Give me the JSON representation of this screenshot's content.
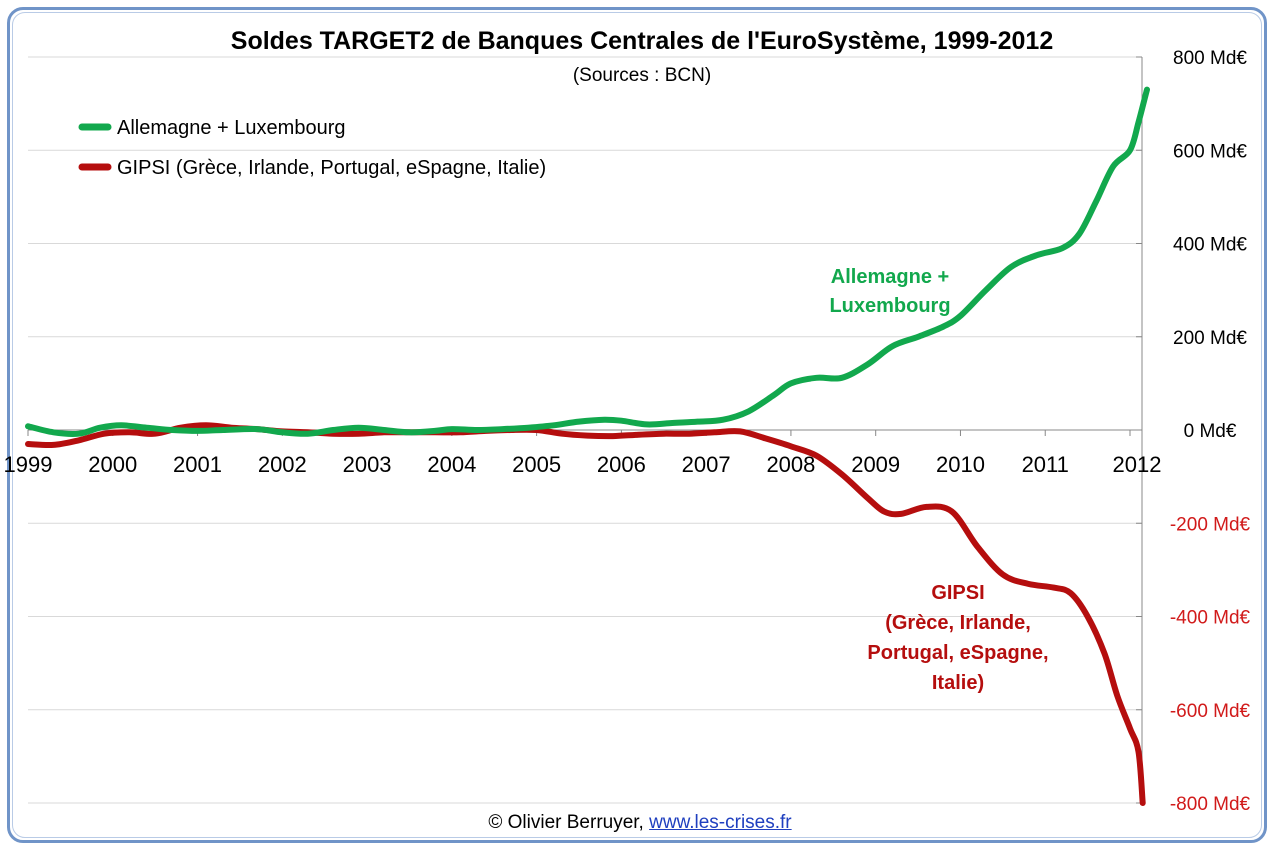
{
  "chart_data": {
    "type": "line",
    "title": "Soldes TARGET2 de Banques Centrales de l'EuroSystème, 1999-2012",
    "subtitle": "(Sources : BCN)",
    "xlabel": "",
    "ylabel": "",
    "x_ticks": [
      "1999",
      "2000",
      "2001",
      "2002",
      "2003",
      "2004",
      "2005",
      "2006",
      "2007",
      "2008",
      "2009",
      "2010",
      "2011",
      "2012"
    ],
    "xlim": [
      1999,
      2012.2
    ],
    "ylim": [
      -800,
      800
    ],
    "y_ticks": [
      {
        "value": 800,
        "label": "800 Md€"
      },
      {
        "value": 600,
        "label": "600 Md€"
      },
      {
        "value": 400,
        "label": "400 Md€"
      },
      {
        "value": 200,
        "label": "200 Md€"
      },
      {
        "value": 0,
        "label": "0 Md€"
      },
      {
        "value": -200,
        "label": "-200 Md€"
      },
      {
        "value": -400,
        "label": "-400 Md€"
      },
      {
        "value": -600,
        "label": "-600 Md€"
      },
      {
        "value": -800,
        "label": "-800 Md€"
      }
    ],
    "grid": true,
    "legend_position": "top-left",
    "series": [
      {
        "name": "Allemagne + Luxembourg",
        "color": "#12a84d",
        "annotation": [
          "Allemagne +",
          "Luxembourg"
        ],
        "points": [
          [
            1999.0,
            8
          ],
          [
            1999.3,
            -5
          ],
          [
            1999.6,
            -8
          ],
          [
            1999.85,
            5
          ],
          [
            2000.1,
            10
          ],
          [
            2000.4,
            5
          ],
          [
            2000.7,
            0
          ],
          [
            2001.0,
            -2
          ],
          [
            2001.3,
            0
          ],
          [
            2001.7,
            2
          ],
          [
            2002.0,
            -5
          ],
          [
            2002.3,
            -8
          ],
          [
            2002.6,
            0
          ],
          [
            2002.9,
            5
          ],
          [
            2003.2,
            0
          ],
          [
            2003.5,
            -5
          ],
          [
            2003.8,
            -2
          ],
          [
            2004.0,
            2
          ],
          [
            2004.3,
            0
          ],
          [
            2004.6,
            2
          ],
          [
            2004.9,
            5
          ],
          [
            2005.2,
            10
          ],
          [
            2005.5,
            18
          ],
          [
            2005.8,
            22
          ],
          [
            2006.0,
            20
          ],
          [
            2006.3,
            12
          ],
          [
            2006.6,
            15
          ],
          [
            2006.9,
            18
          ],
          [
            2007.2,
            22
          ],
          [
            2007.5,
            40
          ],
          [
            2007.8,
            75
          ],
          [
            2008.0,
            100
          ],
          [
            2008.3,
            112
          ],
          [
            2008.6,
            112
          ],
          [
            2008.9,
            140
          ],
          [
            2009.2,
            180
          ],
          [
            2009.5,
            200
          ],
          [
            2009.8,
            222
          ],
          [
            2010.0,
            245
          ],
          [
            2010.3,
            300
          ],
          [
            2010.6,
            350
          ],
          [
            2010.9,
            375
          ],
          [
            2011.2,
            390
          ],
          [
            2011.4,
            420
          ],
          [
            2011.6,
            490
          ],
          [
            2011.8,
            565
          ],
          [
            2012.0,
            600
          ],
          [
            2012.1,
            660
          ],
          [
            2012.2,
            730
          ]
        ]
      },
      {
        "name": "GIPSI (Grèce, Irlande, Portugal, eSpagne, Italie)",
        "color": "#b50e0e",
        "annotation": [
          "GIPSI",
          "(Grèce, Irlande,",
          "Portugal, eSpagne,",
          "Italie)"
        ],
        "points": [
          [
            1999.0,
            -30
          ],
          [
            1999.3,
            -32
          ],
          [
            1999.6,
            -22
          ],
          [
            1999.9,
            -8
          ],
          [
            2000.2,
            -5
          ],
          [
            2000.5,
            -8
          ],
          [
            2000.8,
            5
          ],
          [
            2001.1,
            10
          ],
          [
            2001.4,
            5
          ],
          [
            2001.7,
            2
          ],
          [
            2002.0,
            -3
          ],
          [
            2002.3,
            -5
          ],
          [
            2002.6,
            -8
          ],
          [
            2002.9,
            -8
          ],
          [
            2003.2,
            -5
          ],
          [
            2003.5,
            -5
          ],
          [
            2003.8,
            -5
          ],
          [
            2004.1,
            -5
          ],
          [
            2004.4,
            -2
          ],
          [
            2004.7,
            0
          ],
          [
            2005.0,
            0
          ],
          [
            2005.3,
            -8
          ],
          [
            2005.6,
            -12
          ],
          [
            2005.9,
            -13
          ],
          [
            2006.2,
            -10
          ],
          [
            2006.5,
            -8
          ],
          [
            2006.8,
            -8
          ],
          [
            2007.1,
            -5
          ],
          [
            2007.4,
            -3
          ],
          [
            2007.7,
            -18
          ],
          [
            2008.0,
            -35
          ],
          [
            2008.3,
            -55
          ],
          [
            2008.6,
            -95
          ],
          [
            2008.9,
            -145
          ],
          [
            2009.1,
            -175
          ],
          [
            2009.3,
            -180
          ],
          [
            2009.6,
            -165
          ],
          [
            2009.9,
            -175
          ],
          [
            2010.2,
            -250
          ],
          [
            2010.5,
            -310
          ],
          [
            2010.8,
            -330
          ],
          [
            2011.1,
            -338
          ],
          [
            2011.3,
            -350
          ],
          [
            2011.5,
            -400
          ],
          [
            2011.7,
            -480
          ],
          [
            2011.85,
            -570
          ],
          [
            2012.0,
            -640
          ],
          [
            2012.1,
            -690
          ],
          [
            2012.15,
            -800
          ]
        ]
      }
    ],
    "credit_text": "© Olivier Berruyer, ",
    "credit_link": "www.les-crises.fr"
  }
}
